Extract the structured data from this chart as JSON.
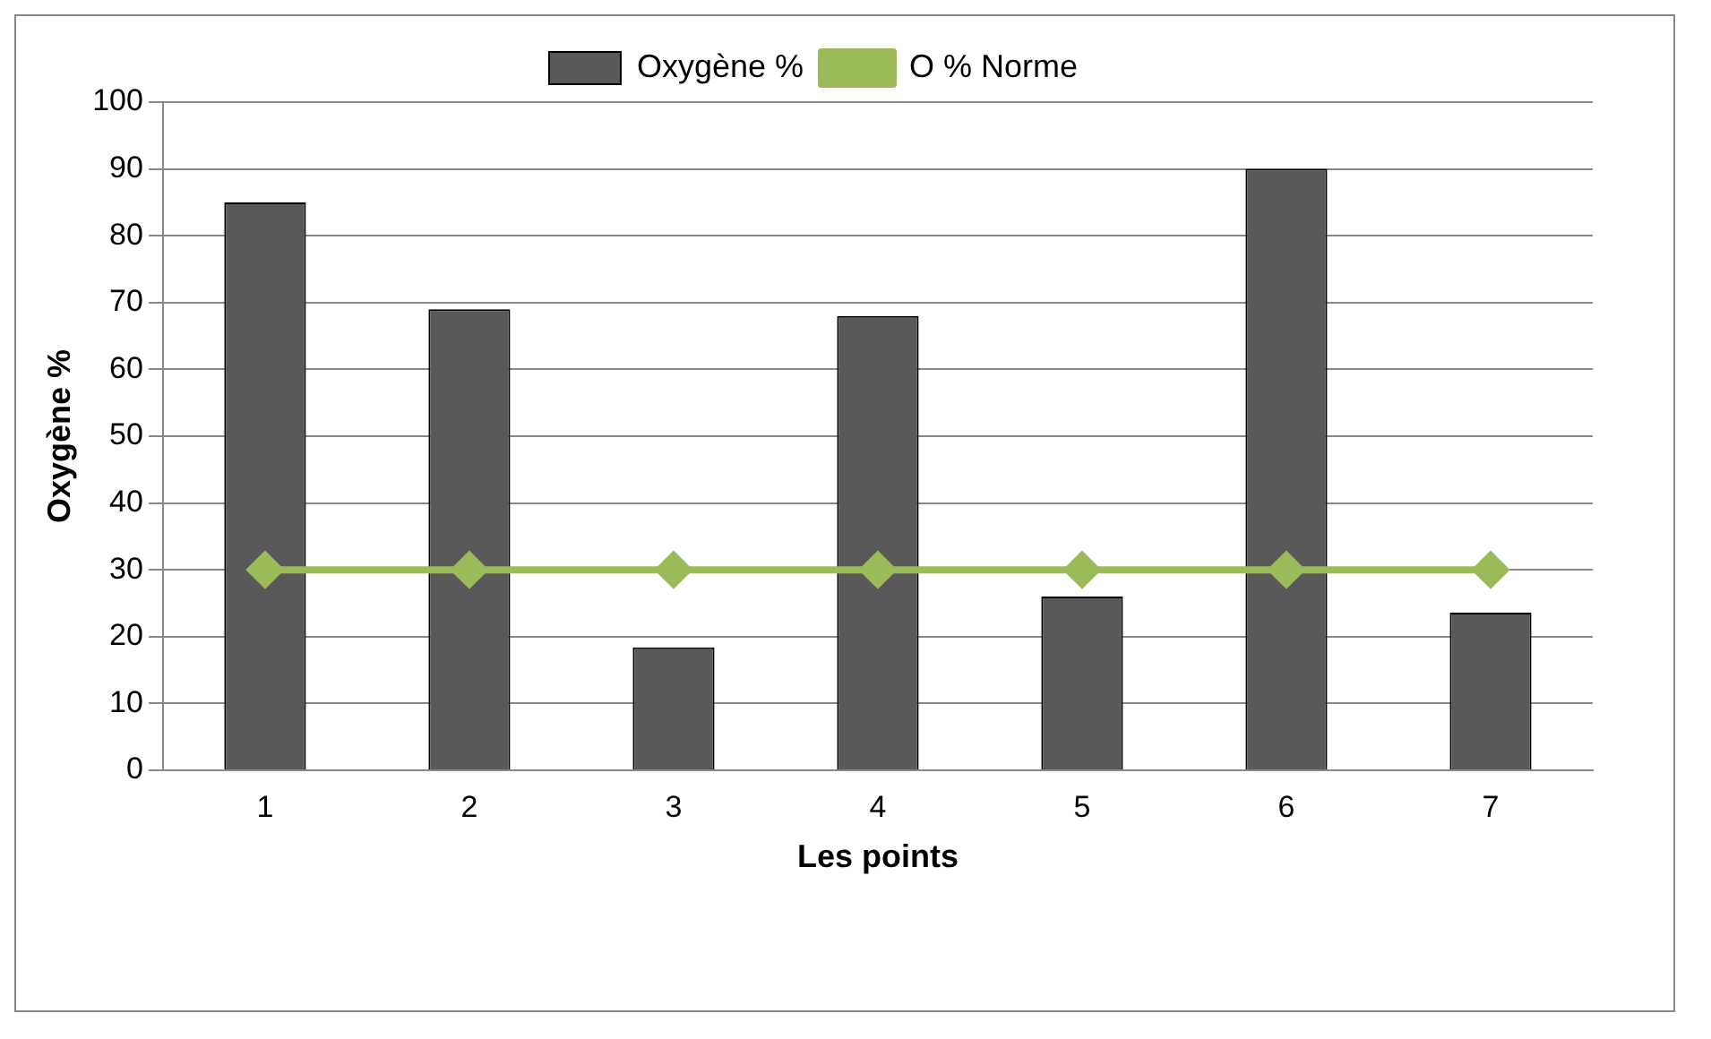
{
  "chart_data": {
    "type": "bar",
    "xlabel": "Les points",
    "ylabel": "Oxygène %",
    "categories": [
      "1",
      "2",
      "3",
      "4",
      "5",
      "6",
      "7"
    ],
    "series": [
      {
        "name": "Oxygène %",
        "color": "#595959",
        "values": [
          85,
          69,
          18.4,
          68,
          26,
          90,
          23.6
        ]
      },
      {
        "name": "O % Norme",
        "type": "line",
        "color": "#9bbb59",
        "marker": "diamond",
        "values": [
          30,
          30,
          30,
          30,
          30,
          30,
          30
        ]
      }
    ],
    "ylim": [
      0,
      100
    ],
    "yticks": [
      0,
      10,
      20,
      30,
      40,
      50,
      60,
      70,
      80,
      90,
      100
    ],
    "grid": "y",
    "legend": "top"
  }
}
